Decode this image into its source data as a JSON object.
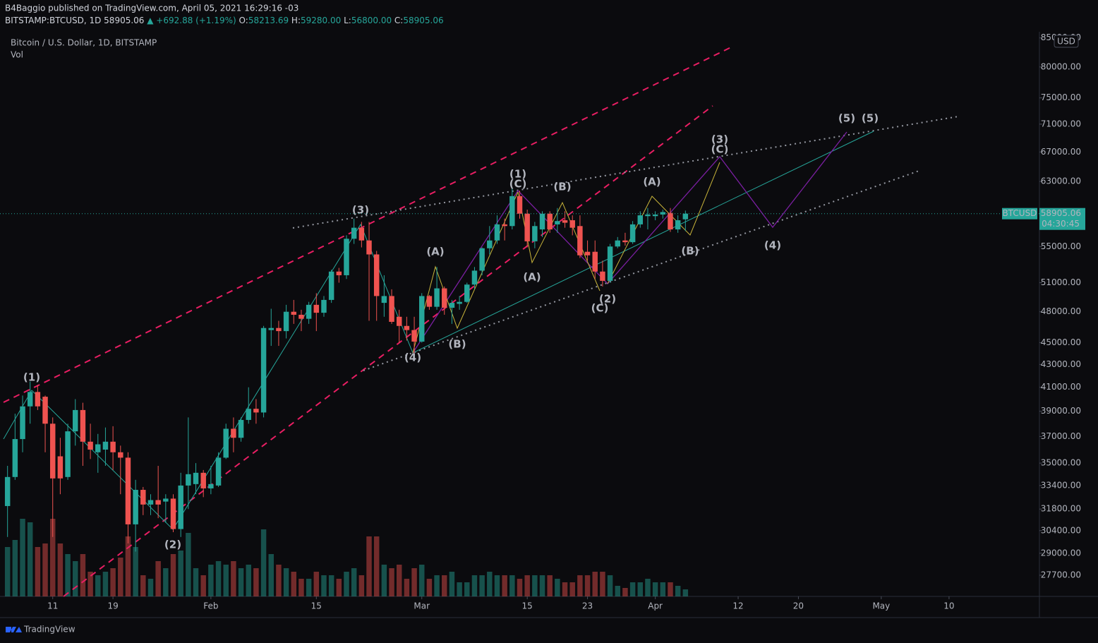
{
  "chart_data": {
    "type": "candlestick",
    "header": {
      "publisher": "B4Baggio published on TradingView.com, April 05, 2021 16:29:16 -03",
      "symbol": "BITSTAMP:BTCUSD, 1D",
      "price": "58905.06",
      "change": "▲ +692.88 (+1.19%)",
      "o_label": "O:",
      "o": "58213.69",
      "h_label": "H:",
      "h": "59280.00",
      "l_label": "L:",
      "l": "56800.00",
      "c_label": "C:",
      "c": "58905.06"
    },
    "legend": "Bitcoin / U.S. Dollar, 1D, BITSTAMP",
    "volume_label": "Vol",
    "currency": "USD",
    "price_tag": {
      "symbol": "BTCUSD",
      "price": "58905.06",
      "countdown": "04:30:45"
    },
    "brand": "TradingView",
    "up_color": "#26a69a",
    "down_color": "#ef5350",
    "log_scale": true,
    "x": [
      "01-05",
      "01-06",
      "01-07",
      "01-08",
      "01-09",
      "01-10",
      "01-11",
      "01-12",
      "01-13",
      "01-14",
      "01-15",
      "01-16",
      "01-17",
      "01-18",
      "01-19",
      "01-20",
      "01-21",
      "01-22",
      "01-23",
      "01-24",
      "01-25",
      "01-26",
      "01-27",
      "01-28",
      "01-29",
      "01-30",
      "01-31",
      "02-01",
      "02-02",
      "02-03",
      "02-04",
      "02-05",
      "02-06",
      "02-07",
      "02-08",
      "02-09",
      "02-10",
      "02-11",
      "02-12",
      "02-13",
      "02-14",
      "02-15",
      "02-16",
      "02-17",
      "02-18",
      "02-19",
      "02-20",
      "02-21",
      "02-22",
      "02-23",
      "02-24",
      "02-25",
      "02-26",
      "02-27",
      "02-28",
      "03-01",
      "03-02",
      "03-03",
      "03-04",
      "03-05",
      "03-06",
      "03-07",
      "03-08",
      "03-09",
      "03-10",
      "03-11",
      "03-12",
      "03-13",
      "03-14",
      "03-15",
      "03-16",
      "03-17",
      "03-18",
      "03-19",
      "03-20",
      "03-21",
      "03-22",
      "03-23",
      "03-24",
      "03-25",
      "03-26",
      "03-27",
      "03-28",
      "03-29",
      "03-30",
      "03-31",
      "04-01",
      "04-02",
      "04-03",
      "04-04",
      "04-05"
    ],
    "open": [
      32000,
      34000,
      36800,
      39400,
      40600,
      40200,
      38000,
      35500,
      34000,
      37400,
      39100,
      36600,
      35800,
      36000,
      36600,
      35800,
      35400,
      30800,
      33100,
      32100,
      32400,
      32300,
      32500,
      30500,
      33400,
      33500,
      34300,
      33200,
      33400,
      35400,
      37600,
      36900,
      38300,
      39200,
      38900,
      46200,
      46400,
      46100,
      48000,
      47700,
      47300,
      48700,
      47900,
      49200,
      52200,
      51800,
      55900,
      57200,
      55700,
      54100,
      48900,
      49600,
      47500,
      46600,
      46200,
      45100,
      49600,
      48500,
      50400,
      48400,
      48800,
      49000,
      50800,
      52300,
      54800,
      55700,
      57600,
      57400,
      61100,
      58900,
      55600,
      57000,
      58900,
      57600,
      58100,
      58100,
      57400,
      54400,
      54400,
      52200,
      51200,
      55000,
      55700,
      55500,
      57600,
      58600,
      58600,
      58800,
      59000,
      57000,
      58213.69
    ],
    "high": [
      34800,
      38800,
      40300,
      41500,
      41200,
      40300,
      38500,
      36900,
      38000,
      40000,
      39700,
      38000,
      37200,
      37700,
      37800,
      36300,
      35800,
      33800,
      33300,
      32800,
      34800,
      32800,
      32800,
      34300,
      38500,
      35000,
      34500,
      34800,
      35800,
      38000,
      38500,
      38500,
      41000,
      40000,
      46600,
      48300,
      47100,
      48700,
      49200,
      48200,
      49000,
      49900,
      49600,
      52400,
      52600,
      56300,
      58300,
      57900,
      57900,
      54500,
      51800,
      50300,
      48200,
      47500,
      47500,
      49900,
      49700,
      52700,
      50600,
      49200,
      49600,
      51000,
      52700,
      54900,
      57400,
      58700,
      58300,
      62200,
      61800,
      59400,
      57900,
      59200,
      59200,
      59600,
      59200,
      58700,
      58700,
      55700,
      55700,
      53400,
      55300,
      56100,
      56600,
      58000,
      59200,
      59600,
      59200,
      59400,
      59600,
      58700,
      59280
    ],
    "low": [
      30000,
      33800,
      35800,
      38000,
      39100,
      35800,
      30000,
      32800,
      33800,
      36300,
      34800,
      35300,
      34300,
      34800,
      34500,
      32800,
      29600,
      29100,
      31400,
      31400,
      31200,
      30900,
      30300,
      30000,
      31800,
      32800,
      32600,
      32800,
      33300,
      35300,
      35800,
      36600,
      38000,
      38000,
      38500,
      44700,
      44700,
      45400,
      46800,
      46100,
      46800,
      46100,
      47500,
      48900,
      51000,
      51400,
      55300,
      54900,
      47100,
      47100,
      47500,
      46800,
      45000,
      45200,
      44000,
      45000,
      48200,
      48200,
      47700,
      46800,
      48200,
      48900,
      50300,
      51800,
      54100,
      55300,
      55700,
      57000,
      58300,
      54900,
      54800,
      56100,
      56600,
      56600,
      57200,
      56300,
      53700,
      53400,
      51400,
      50600,
      51000,
      54800,
      55100,
      55300,
      57200,
      57000,
      58100,
      58300,
      56700,
      56600,
      56800
    ],
    "close": [
      34000,
      36800,
      39400,
      40600,
      39400,
      38000,
      33900,
      33900,
      37400,
      39100,
      36600,
      36000,
      36400,
      36600,
      35800,
      35400,
      30800,
      33100,
      32100,
      32400,
      32100,
      32500,
      30500,
      33400,
      34200,
      34300,
      33200,
      33500,
      35400,
      37600,
      36900,
      38300,
      39200,
      38900,
      46400,
      46400,
      46100,
      48000,
      47700,
      47300,
      48700,
      47900,
      49200,
      52200,
      51800,
      55900,
      57200,
      55700,
      54100,
      49600,
      49600,
      47000,
      46600,
      46200,
      45100,
      49600,
      48500,
      50400,
      48400,
      48900,
      49000,
      50800,
      52300,
      54800,
      55700,
      57600,
      57400,
      61100,
      58900,
      55600,
      57400,
      58900,
      57000,
      58000,
      57800,
      57200,
      54000,
      54000,
      52200,
      51200,
      55000,
      55700,
      55500,
      57600,
      58700,
      58800,
      58800,
      59100,
      57000,
      58100,
      58905.06
    ],
    "volume": [
      21000,
      24000,
      33000,
      31500,
      21000,
      22500,
      33000,
      22500,
      18000,
      15000,
      18000,
      10500,
      9000,
      10500,
      12000,
      16500,
      25500,
      21000,
      9000,
      7500,
      15000,
      12000,
      18000,
      19500,
      27000,
      12000,
      9000,
      13500,
      15000,
      13500,
      15000,
      12000,
      13500,
      12000,
      28500,
      18000,
      13500,
      12000,
      10500,
      7500,
      7500,
      10500,
      9000,
      9000,
      7500,
      10500,
      12000,
      9000,
      25500,
      25500,
      13500,
      12000,
      13500,
      7500,
      12000,
      13500,
      7500,
      9000,
      9000,
      10500,
      6000,
      6000,
      9000,
      9000,
      10500,
      9000,
      9000,
      9000,
      7500,
      9000,
      9000,
      9000,
      9000,
      7500,
      6000,
      6000,
      9000,
      9000,
      10500,
      10500,
      9000,
      4500,
      3600,
      6000,
      6000,
      7500,
      6000,
      6000,
      6000,
      4500,
      3000
    ],
    "vlim": [
      0,
      42000
    ],
    "xlim": [
      "01-04",
      "05-22"
    ],
    "xticks": [
      {
        "value": "01-11",
        "label": "11"
      },
      {
        "value": "01-19",
        "label": "19"
      },
      {
        "value": "02-01",
        "label": "Feb"
      },
      {
        "value": "02-15",
        "label": "15"
      },
      {
        "value": "03-01",
        "label": "Mar"
      },
      {
        "value": "03-15",
        "label": "15"
      },
      {
        "value": "03-23",
        "label": "23"
      },
      {
        "value": "04-01",
        "label": "Apr"
      },
      {
        "value": "04-12",
        "label": "12"
      },
      {
        "value": "04-20",
        "label": "20"
      },
      {
        "value": "05-01",
        "label": "May"
      },
      {
        "value": "05-10",
        "label": "10"
      }
    ],
    "ylim": [
      26500,
      86100
    ],
    "yticks": [
      {
        "value": 27700,
        "label": "27700.00"
      },
      {
        "value": 29000,
        "label": "29000.00"
      },
      {
        "value": 30400,
        "label": "30400.00"
      },
      {
        "value": 31800,
        "label": "31800.00"
      },
      {
        "value": 33400,
        "label": "33400.00"
      },
      {
        "value": 35000,
        "label": "35000.00"
      },
      {
        "value": 37000,
        "label": "37000.00"
      },
      {
        "value": 39000,
        "label": "39000.00"
      },
      {
        "value": 41000,
        "label": "41000.00"
      },
      {
        "value": 43000,
        "label": "43000.00"
      },
      {
        "value": 45000,
        "label": "45000.00"
      },
      {
        "value": 48000,
        "label": "48000.00"
      },
      {
        "value": 51000,
        "label": "51000.00"
      },
      {
        "value": 55000,
        "label": "55000.00"
      },
      {
        "value": 63000,
        "label": "63000.00"
      },
      {
        "value": 67000,
        "label": "67000.00"
      },
      {
        "value": 71000,
        "label": "71000.00"
      },
      {
        "value": 75000,
        "label": "75000.00"
      },
      {
        "value": 80000,
        "label": "80000.00"
      },
      {
        "value": 85000,
        "label": "85000.00"
      }
    ],
    "annotations": [
      {
        "text": "(1)",
        "color": "#26a69a"
      },
      {
        "text": "(2)",
        "color": "#26a69a"
      },
      {
        "text": "(3)",
        "color": "#26a69a"
      },
      {
        "text": "(4)",
        "color": "#26a69a"
      },
      {
        "text": "(5)",
        "color": "#26a69a"
      },
      {
        "text": "(1)",
        "color": "#9c27b0"
      },
      {
        "text": "(2)",
        "color": "#9c27b0"
      },
      {
        "text": "(3)",
        "color": "#9c27b0"
      },
      {
        "text": "(4)",
        "color": "#9c27b0"
      },
      {
        "text": "(5)",
        "color": "#9c27b0"
      },
      {
        "text": "(A)",
        "color": "#f5d33b"
      },
      {
        "text": "(B)",
        "color": "#f5d33b"
      },
      {
        "text": "(C)",
        "color": "#f5d33b"
      },
      {
        "text": "(A)",
        "color": "#f5d33b"
      },
      {
        "text": "(B)",
        "color": "#f5d33b"
      },
      {
        "text": "(C)",
        "color": "#f5d33b"
      },
      {
        "text": "(A)",
        "color": "#f5d33b"
      },
      {
        "text": "(B)",
        "color": "#f5d33b"
      },
      {
        "text": "(C)",
        "color": "#f5d33b"
      }
    ]
  }
}
